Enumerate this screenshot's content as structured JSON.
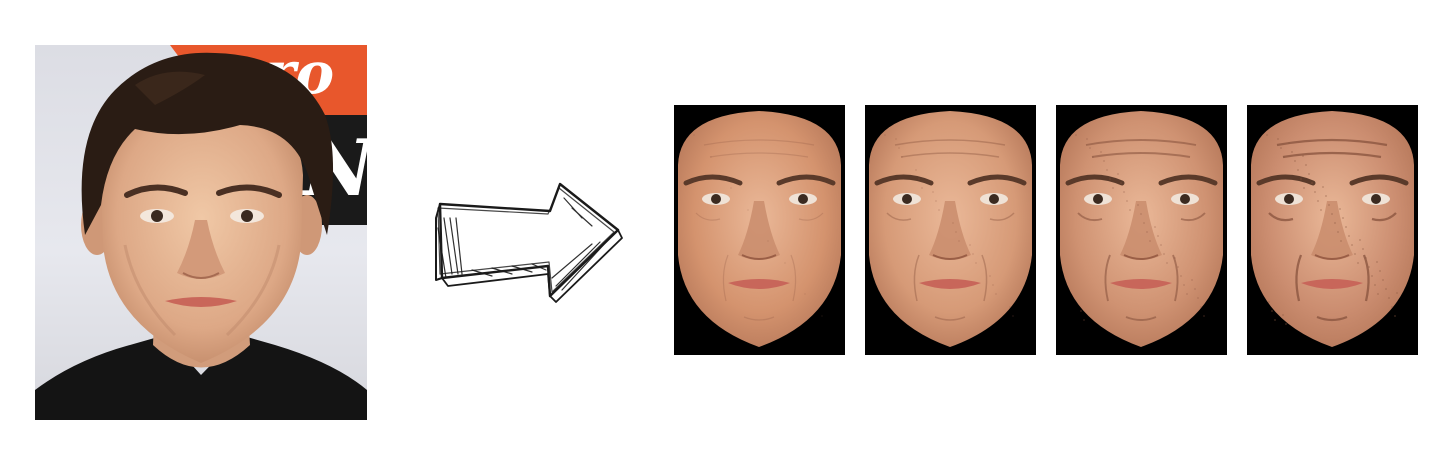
{
  "source_photo": {
    "icon": "portrait-photo",
    "backdrop_sign_text": [
      "ro",
      "NE"
    ],
    "backdrop_sign_color": "#e8572c"
  },
  "transform_arrow": {
    "icon": "hand-drawn-arrow-right-icon"
  },
  "aged_faces": [
    {
      "name": "aged-face-1",
      "skin": "#d4936e",
      "wrinkles": 0.15
    },
    {
      "name": "aged-face-2",
      "skin": "#d69a77",
      "wrinkles": 0.35
    },
    {
      "name": "aged-face-3",
      "skin": "#cf9272",
      "wrinkles": 0.6
    },
    {
      "name": "aged-face-4",
      "skin": "#cb8d70",
      "wrinkles": 0.85
    }
  ]
}
